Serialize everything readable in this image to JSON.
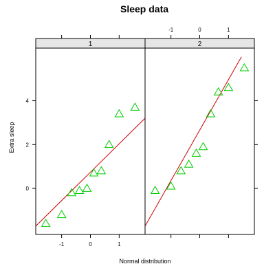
{
  "chart_data": {
    "type": "scatter",
    "title": "Sleep data",
    "xlabel": "Normal distribution",
    "ylabel": "Extra sleep",
    "xlim": [
      -1.9,
      1.9
    ],
    "ylim": [
      -2.1,
      6.4
    ],
    "x_ticks": [
      -1,
      0,
      1
    ],
    "y_ticks": [
      0,
      2,
      4
    ],
    "grid": false,
    "colors": {
      "points": "#00cc00",
      "line": "#cc0000",
      "strip": "#e6e6e6"
    },
    "panels": [
      {
        "label": "1",
        "points": [
          {
            "x": -1.55,
            "y": -1.6
          },
          {
            "x": -1.0,
            "y": -1.2
          },
          {
            "x": -0.65,
            "y": -0.2
          },
          {
            "x": -0.38,
            "y": -0.1
          },
          {
            "x": -0.12,
            "y": 0.0
          },
          {
            "x": 0.12,
            "y": 0.7
          },
          {
            "x": 0.38,
            "y": 0.8
          },
          {
            "x": 0.65,
            "y": 2.0
          },
          {
            "x": 1.0,
            "y": 3.4
          },
          {
            "x": 1.55,
            "y": 3.7
          }
        ],
        "fit_line": {
          "x": [
            -1.9,
            1.9
          ],
          "y": [
            -1.72,
            3.2
          ]
        }
      },
      {
        "label": "2",
        "points": [
          {
            "x": -1.55,
            "y": -0.1
          },
          {
            "x": -1.0,
            "y": 0.1
          },
          {
            "x": -0.65,
            "y": 0.8
          },
          {
            "x": -0.38,
            "y": 1.1
          },
          {
            "x": -0.12,
            "y": 1.6
          },
          {
            "x": 0.12,
            "y": 1.9
          },
          {
            "x": 0.38,
            "y": 3.4
          },
          {
            "x": 0.65,
            "y": 4.4
          },
          {
            "x": 1.0,
            "y": 4.6
          },
          {
            "x": 1.55,
            "y": 5.5
          }
        ],
        "fit_line": {
          "x": [
            -1.9,
            1.45
          ],
          "y": [
            -1.72,
            6.0
          ]
        }
      }
    ]
  }
}
